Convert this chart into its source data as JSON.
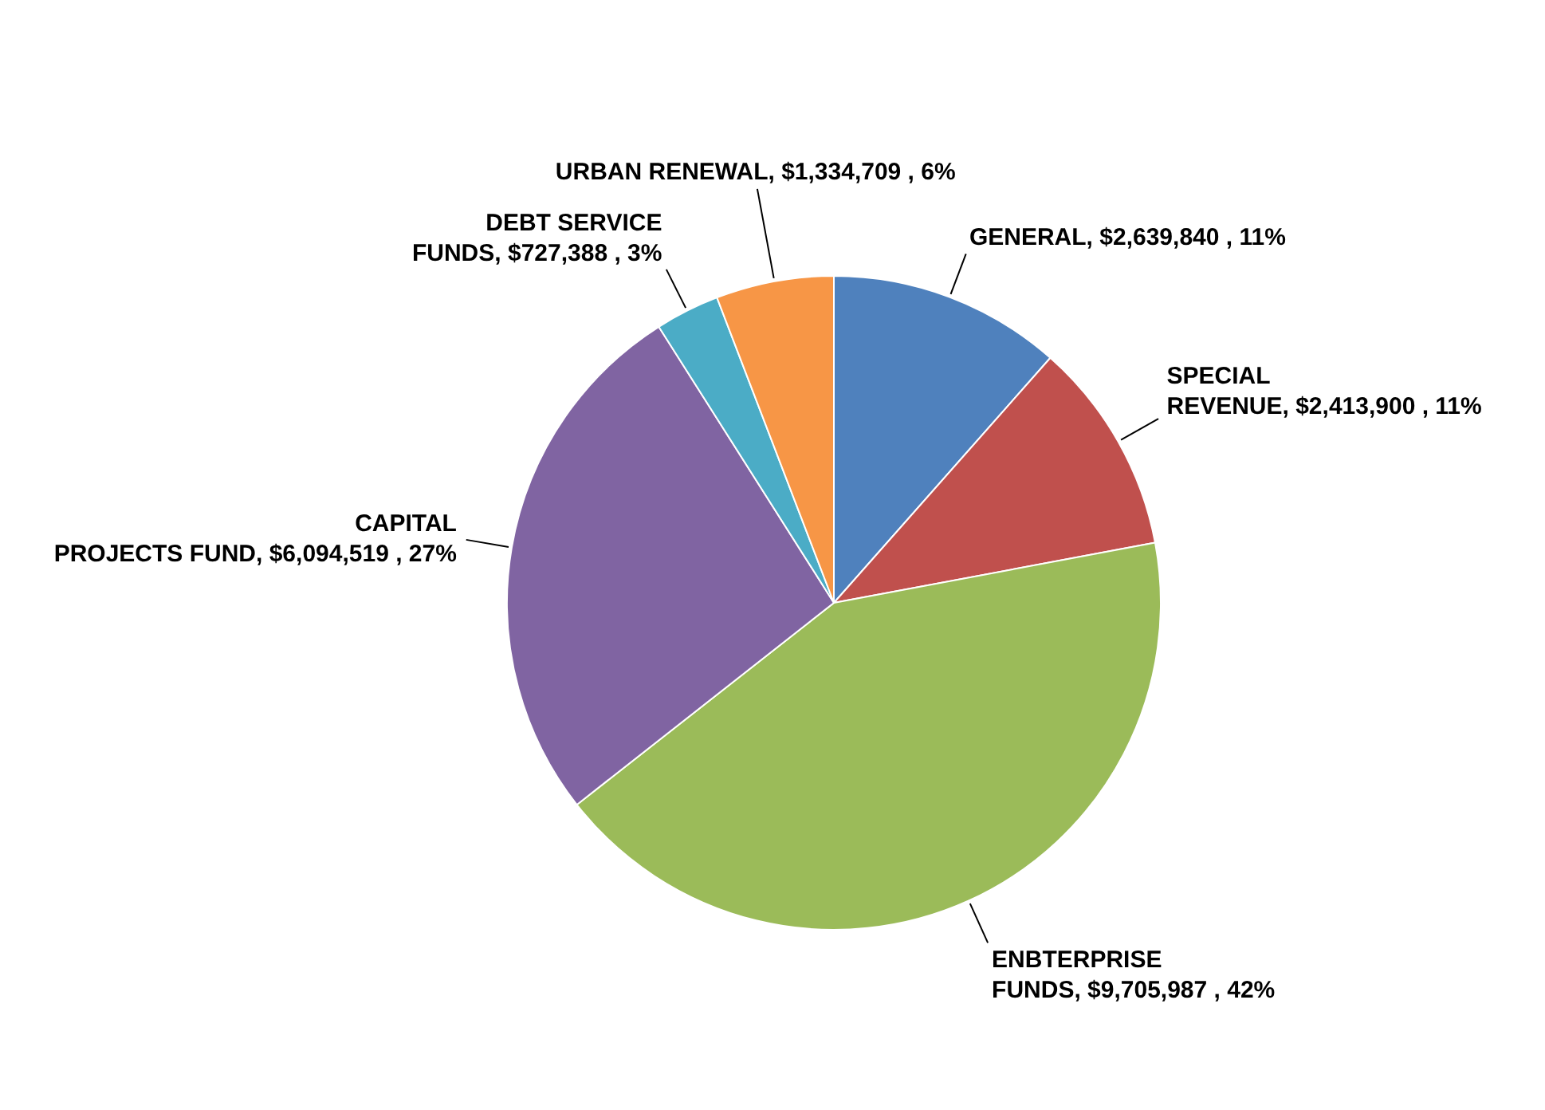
{
  "chart_data": {
    "type": "pie",
    "categories": [
      "GENERAL",
      "SPECIAL REVENUE",
      "ENBTERPRISE FUNDS",
      "CAPITAL PROJECTS FUND",
      "DEBT SERVICE FUNDS",
      "URBAN RENEWAL"
    ],
    "values": [
      2639840,
      2413900,
      9705987,
      6094519,
      727388,
      1334709
    ],
    "value_labels": [
      "$2,639,840 , 11%",
      "$2,413,900 , 11%",
      "$9,705,987 , 42%",
      "$6,094,519 , 27%",
      "$727,388 , 3%",
      "$1,334,709 , 6%"
    ],
    "colors": [
      "#4f81bd",
      "#c0504d",
      "#9bbb59",
      "#8064a2",
      "#4bacc6",
      "#f79646"
    ],
    "legend": false
  }
}
